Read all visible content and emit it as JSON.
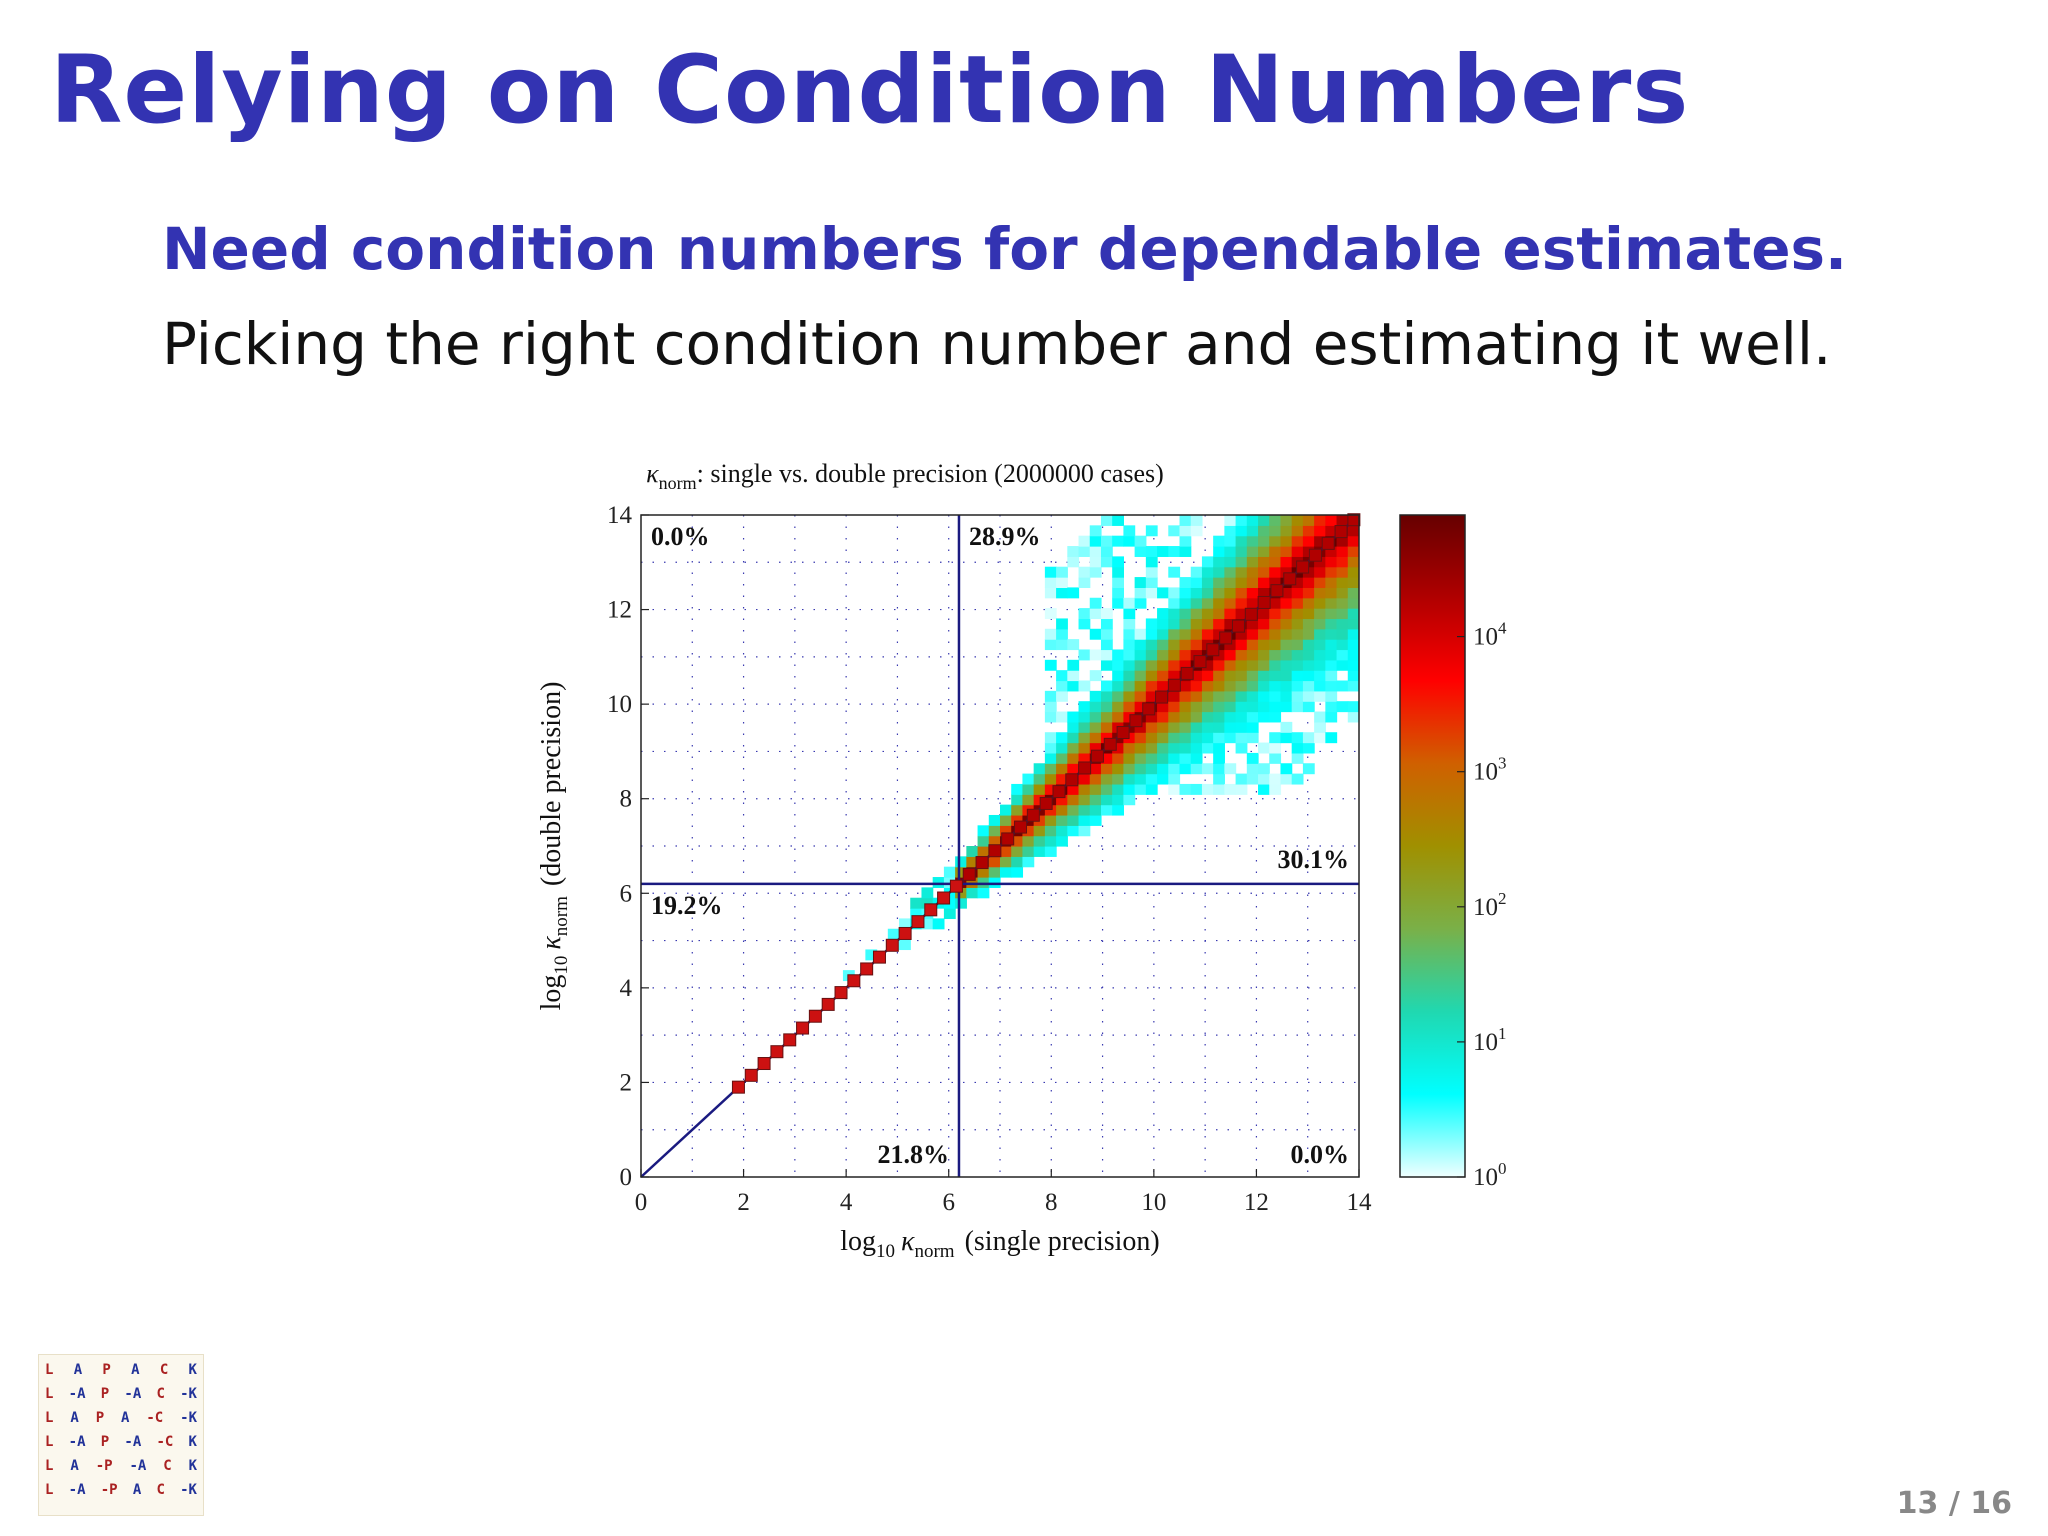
{
  "slide": {
    "title": "Relying on Condition Numbers",
    "subtitle": "Need condition numbers for dependable estimates.",
    "body": "Picking the right condition number and estimating it well."
  },
  "page_number": "13 / 16",
  "logo": {
    "rows": [
      [
        "L",
        "A",
        "P",
        "A",
        "C",
        "K"
      ],
      [
        "L",
        "-A",
        "P",
        "-A",
        "C",
        "-K"
      ],
      [
        "L",
        "A",
        "P",
        "A",
        "-C",
        "-K"
      ],
      [
        "L",
        "-A",
        "P",
        "-A",
        "-C",
        "K"
      ],
      [
        "L",
        "A",
        "-P",
        "-A",
        "C",
        "K"
      ],
      [
        "L",
        "-A",
        "-P",
        "A",
        "C",
        "-K"
      ]
    ],
    "colors": [
      "#aa2222",
      "#223399",
      "#aa2222",
      "#223399",
      "#aa2222",
      "#223399"
    ]
  },
  "colors": {
    "title": "#3333b2",
    "divider_lines": "#1a1a80",
    "diagonal_marker": "#cc1111"
  },
  "chart_data": {
    "type": "heatmap",
    "title_symbol": "κ",
    "title_subscript": "norm",
    "title_rest": ": single vs. double precision (2000000 cases)",
    "xlabel_log": "log",
    "xlabel_log_sub": "10",
    "xlabel_symbol": "κ",
    "xlabel_sub": "norm",
    "xlabel_rest": "(single precision)",
    "ylabel_log": "log",
    "ylabel_log_sub": "10",
    "ylabel_symbol": "κ",
    "ylabel_sub": "norm",
    "ylabel_rest": "(double precision)",
    "xlim": [
      0,
      14
    ],
    "ylim": [
      0,
      14
    ],
    "xticks": [
      0,
      2,
      4,
      6,
      8,
      10,
      12,
      14
    ],
    "yticks": [
      0,
      2,
      4,
      6,
      8,
      10,
      12,
      14
    ],
    "grid": true,
    "threshold": 6.2,
    "quadrant_percentages": [
      {
        "label": "0.0%",
        "position": "top-left"
      },
      {
        "label": "28.9%",
        "position": "top-middle"
      },
      {
        "label": "30.1%",
        "position": "middle-right"
      },
      {
        "label": "19.2%",
        "position": "middle-left"
      },
      {
        "label": "21.8%",
        "position": "bottom-middle"
      },
      {
        "label": "0.0%",
        "position": "bottom-right"
      }
    ],
    "diagonal_range": [
      0,
      14
    ],
    "diagonal_markers_start": 1.9,
    "diagonal_markers_step": 0.25,
    "colorbar": {
      "label_base": "10",
      "exponents": [
        "0",
        "1",
        "2",
        "3",
        "4"
      ],
      "log_range": [
        0,
        4.9
      ],
      "stops": [
        "#f0ffff",
        "#00ffff",
        "#20d8b0",
        "#7ab048",
        "#a09000",
        "#d06000",
        "#ff0000",
        "#b00000",
        "#660000"
      ]
    },
    "clusters": [
      {
        "name": "diagonal",
        "x_range": [
          6,
          14
        ],
        "count_log": 4.7
      },
      {
        "name": "upper-spread",
        "x_range": [
          8,
          13
        ],
        "y_range": [
          8.5,
          14
        ],
        "count_log": 1.2
      },
      {
        "name": "lower-spread",
        "x_range": [
          8,
          14
        ],
        "y_range": [
          8,
          13
        ],
        "count_log": 1.0
      }
    ]
  }
}
